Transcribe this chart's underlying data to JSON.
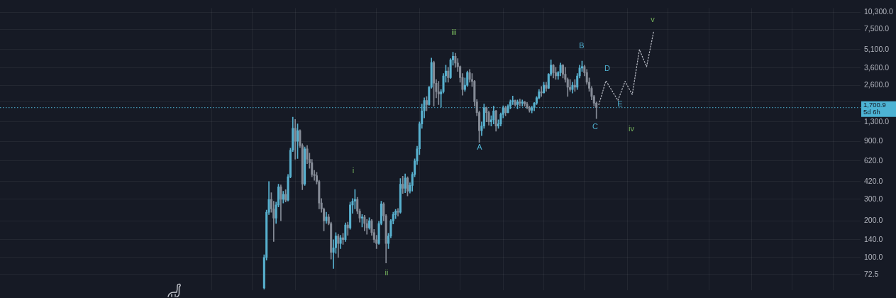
{
  "chart_data": {
    "type": "candlestick",
    "categories": [
      null,
      null,
      null,
      null,
      null,
      null,
      null,
      null,
      null,
      null,
      null,
      null,
      null,
      null,
      null,
      null,
      null,
      null,
      null,
      null,
      null,
      null,
      null,
      null,
      null,
      null,
      null,
      null,
      null,
      null,
      null,
      null,
      null,
      null,
      null,
      null,
      null,
      null,
      null,
      null,
      null,
      null,
      null,
      null,
      null,
      null,
      null,
      null,
      null,
      null,
      null,
      null,
      null,
      null,
      null,
      null,
      null,
      null,
      null,
      null,
      null,
      null,
      null,
      null,
      null,
      null,
      null,
      null,
      null,
      null,
      null,
      null,
      null,
      null,
      null,
      null,
      null,
      null,
      null,
      null,
      null,
      null,
      null,
      null,
      null,
      null,
      null,
      null,
      null,
      null,
      null,
      null,
      null,
      null,
      null,
      null,
      null,
      null,
      null,
      null,
      null,
      null,
      null,
      null,
      null,
      null,
      null,
      null,
      null,
      null,
      null,
      null,
      null,
      null,
      null,
      null,
      null,
      null,
      null,
      null,
      null,
      null,
      null,
      null,
      null,
      null,
      null,
      null,
      null,
      null,
      null,
      null,
      null,
      null,
      null,
      null,
      null,
      null,
      null,
      null,
      null,
      null,
      null,
      null,
      null,
      null,
      null,
      null,
      null,
      null,
      null,
      null,
      null,
      null,
      null,
      null,
      null,
      null,
      null,
      null,
      null,
      null,
      null,
      null,
      null,
      null,
      null,
      null,
      null,
      null,
      null,
      null,
      null,
      null,
      null,
      null,
      null,
      null,
      null,
      null,
      null,
      null,
      null,
      null,
      null,
      null,
      null,
      null,
      null,
      null,
      null,
      null,
      null,
      null,
      null,
      null,
      null,
      null,
      null,
      null,
      null,
      null,
      null,
      null,
      null,
      null,
      null,
      null,
      null,
      null,
      null,
      null,
      null,
      null,
      null,
      null,
      null,
      null,
      null,
      null,
      null,
      null,
      null,
      null,
      null,
      null,
      null,
      null,
      null,
      null,
      null,
      null,
      null,
      null,
      null,
      null,
      null,
      null,
      null,
      null,
      null,
      null,
      null,
      null,
      null,
      null,
      null,
      null,
      null,
      null,
      null,
      null,
      null,
      null,
      null,
      null,
      null,
      null,
      null,
      null,
      null,
      null,
      null,
      null,
      null,
      null,
      null,
      null,
      null,
      null,
      null,
      null,
      null,
      null,
      null,
      null,
      null,
      null,
      null,
      null,
      null,
      null,
      null,
      null,
      null,
      null,
      null,
      null,
      null,
      null,
      null,
      null,
      null,
      null,
      null,
      null,
      null,
      null,
      null,
      null,
      null,
      null,
      null,
      null,
      null,
      null,
      null,
      null,
      null,
      null,
      null,
      null,
      null,
      null,
      null,
      null,
      null,
      null,
      null,
      null,
      null,
      null,
      null,
      null,
      null,
      null,
      null,
      null,
      null,
      null,
      null,
      null,
      null,
      null,
      null,
      null,
      null,
      null,
      null,
      null,
      null,
      null,
      null,
      null,
      null,
      null,
      null,
      null,
      null,
      null,
      null,
      null,
      null,
      null,
      null,
      null,
      null,
      null,
      null,
      null
    ],
    "ohlc": [
      null,
      null,
      null,
      null,
      null,
      null,
      null,
      null,
      null,
      null,
      null,
      null,
      null,
      null,
      null,
      null,
      null,
      null,
      null,
      null,
      null,
      null,
      null,
      null,
      null,
      null,
      null,
      null,
      null,
      null,
      null,
      null,
      null,
      null,
      null,
      null,
      null,
      null,
      null,
      null,
      null,
      null,
      null,
      null,
      null,
      null,
      null,
      null,
      null,
      null,
      null,
      null,
      null,
      null,
      null,
      null,
      null,
      null,
      null,
      null,
      null,
      null,
      null,
      null,
      null,
      null,
      null,
      null,
      null,
      null,
      null,
      null,
      null,
      null,
      null,
      null,
      null,
      null,
      null,
      null,
      null,
      null,
      null,
      null,
      null,
      null,
      null,
      null,
      null,
      null,
      null,
      null,
      null,
      null,
      null,
      null,
      null,
      null,
      null,
      null,
      null,
      null,
      null,
      null,
      null,
      null,
      null,
      null,
      null,
      null,
      [
        56,
        105,
        55,
        100
      ],
      [
        100,
        245,
        95,
        235
      ],
      [
        235,
        420,
        225,
        300
      ],
      [
        300,
        340,
        235,
        250
      ],
      [
        250,
        290,
        135,
        210
      ],
      [
        210,
        285,
        190,
        270
      ],
      [
        270,
        400,
        260,
        380
      ],
      [
        380,
        395,
        200,
        300
      ],
      [
        300,
        350,
        280,
        330
      ],
      [
        330,
        360,
        285,
        295
      ],
      [
        295,
        480,
        290,
        460
      ],
      [
        460,
        790,
        450,
        760
      ],
      [
        760,
        1420,
        740,
        1150
      ],
      [
        1150,
        1360,
        640,
        900
      ],
      [
        900,
        1250,
        650,
        1100
      ],
      [
        1100,
        1120,
        800,
        830
      ],
      [
        830,
        860,
        360,
        400
      ],
      [
        400,
        810,
        390,
        780
      ],
      [
        780,
        830,
        590,
        640
      ],
      [
        640,
        720,
        540,
        600
      ],
      [
        600,
        640,
        460,
        480
      ],
      [
        480,
        520,
        430,
        470
      ],
      [
        470,
        500,
        400,
        420
      ],
      [
        420,
        430,
        250,
        280
      ],
      [
        280,
        305,
        235,
        250
      ],
      [
        250,
        255,
        165,
        200
      ],
      [
        200,
        235,
        190,
        215
      ],
      [
        215,
        225,
        185,
        190
      ],
      [
        190,
        195,
        97,
        110
      ],
      [
        110,
        140,
        81,
        120
      ],
      [
        120,
        160,
        108,
        150
      ],
      [
        150,
        155,
        100,
        130
      ],
      [
        130,
        152,
        118,
        145
      ],
      [
        145,
        158,
        128,
        140
      ],
      [
        140,
        192,
        135,
        185
      ],
      [
        185,
        195,
        152,
        175
      ],
      [
        175,
        285,
        170,
        270
      ],
      [
        270,
        305,
        230,
        290
      ],
      [
        290,
        362,
        250,
        300
      ],
      [
        300,
        312,
        228,
        240
      ],
      [
        240,
        250,
        195,
        210
      ],
      [
        210,
        225,
        178,
        215
      ],
      [
        215,
        222,
        165,
        190
      ],
      [
        190,
        205,
        155,
        175
      ],
      [
        175,
        212,
        170,
        200
      ],
      [
        200,
        205,
        152,
        160
      ],
      [
        160,
        170,
        133,
        140
      ],
      [
        140,
        152,
        118,
        130
      ],
      [
        130,
        198,
        128,
        190
      ],
      [
        190,
        290,
        185,
        275
      ],
      [
        275,
        282,
        200,
        220
      ],
      [
        220,
        225,
        90,
        130
      ],
      [
        130,
        158,
        118,
        150
      ],
      [
        150,
        205,
        145,
        200
      ],
      [
        200,
        235,
        188,
        225
      ],
      [
        225,
        248,
        208,
        240
      ],
      [
        240,
        252,
        218,
        235
      ],
      [
        235,
        445,
        230,
        400
      ],
      [
        400,
        465,
        335,
        370
      ],
      [
        370,
        485,
        340,
        450
      ],
      [
        450,
        460,
        320,
        350
      ],
      [
        350,
        410,
        338,
        390
      ],
      [
        390,
        500,
        350,
        480
      ],
      [
        480,
        645,
        460,
        620
      ],
      [
        620,
        820,
        580,
        780
      ],
      [
        780,
        1300,
        700,
        1250
      ],
      [
        1250,
        1820,
        1150,
        1600
      ],
      [
        1600,
        2050,
        1400,
        1950
      ],
      [
        1950,
        2100,
        1600,
        1800
      ],
      [
        1800,
        2550,
        1780,
        2500
      ],
      [
        2500,
        4350,
        2450,
        4000
      ],
      [
        4000,
        4100,
        1750,
        2700
      ],
      [
        2700,
        2900,
        2050,
        2300
      ],
      [
        2300,
        2800,
        1800,
        2200
      ],
      [
        2200,
        2400,
        1720,
        2300
      ],
      [
        2300,
        3250,
        2240,
        3100
      ],
      [
        3100,
        3800,
        2750,
        3400
      ],
      [
        3400,
        3650,
        2750,
        3000
      ],
      [
        3000,
        4300,
        2950,
        4200
      ],
      [
        4200,
        4850,
        3800,
        4500
      ],
      [
        4500,
        4750,
        3650,
        3950
      ],
      [
        3950,
        4300,
        3380,
        3700
      ],
      [
        3700,
        3750,
        2750,
        3000
      ],
      [
        3000,
        3250,
        2150,
        2400
      ],
      [
        2400,
        2980,
        2320,
        2600
      ],
      [
        2600,
        3400,
        2540,
        3300
      ],
      [
        3300,
        3500,
        2750,
        2900
      ],
      [
        2900,
        3250,
        2540,
        2800
      ],
      [
        2800,
        2850,
        1750,
        1900
      ],
      [
        1900,
        1980,
        1460,
        1550
      ],
      [
        1550,
        1600,
        880,
        1100
      ],
      [
        1100,
        1300,
        1000,
        1200
      ],
      [
        1200,
        1820,
        1150,
        1700
      ],
      [
        1700,
        1720,
        1300,
        1550
      ],
      [
        1550,
        1600,
        1220,
        1300
      ],
      [
        1300,
        1460,
        1200,
        1350
      ],
      [
        1350,
        1750,
        1250,
        1600
      ],
      [
        1600,
        1620,
        1090,
        1200
      ],
      [
        1200,
        1350,
        1150,
        1250
      ],
      [
        1250,
        1540,
        1200,
        1500
      ],
      [
        1500,
        1760,
        1400,
        1700
      ],
      [
        1700,
        1750,
        1460,
        1550
      ],
      [
        1550,
        1800,
        1540,
        1750
      ],
      [
        1750,
        1970,
        1660,
        1900
      ],
      [
        1900,
        2120,
        1800,
        1950
      ],
      [
        1950,
        1970,
        1750,
        1800
      ],
      [
        1800,
        1970,
        1660,
        1900
      ],
      [
        1900,
        2000,
        1750,
        1850
      ],
      [
        1850,
        1970,
        1750,
        1900
      ],
      [
        1900,
        1920,
        1750,
        1820
      ],
      [
        1820,
        1880,
        1660,
        1700
      ],
      [
        1700,
        1750,
        1560,
        1620
      ],
      [
        1620,
        1750,
        1540,
        1700
      ],
      [
        1700,
        1880,
        1600,
        1850
      ],
      [
        1850,
        2100,
        1800,
        2050
      ],
      [
        2050,
        2400,
        2000,
        2300
      ],
      [
        2300,
        2540,
        2100,
        2250
      ],
      [
        2250,
        2750,
        2240,
        2600
      ],
      [
        2600,
        2750,
        2320,
        2450
      ],
      [
        2450,
        3250,
        2440,
        3200
      ],
      [
        3200,
        4200,
        3100,
        3800
      ],
      [
        3800,
        3850,
        2980,
        3300
      ],
      [
        3300,
        3650,
        2900,
        3100
      ],
      [
        3100,
        3380,
        2900,
        3300
      ],
      [
        3300,
        3960,
        3100,
        3800
      ],
      [
        3800,
        3850,
        2980,
        3200
      ],
      [
        3200,
        3650,
        2750,
        2900
      ],
      [
        2900,
        2980,
        2100,
        2500
      ],
      [
        2500,
        2900,
        2320,
        2400
      ],
      [
        2400,
        2750,
        2240,
        2600
      ],
      [
        2600,
        2900,
        2320,
        2500
      ],
      [
        2500,
        3250,
        2400,
        3100
      ],
      [
        3100,
        3800,
        2980,
        3600
      ],
      [
        3600,
        4100,
        3380,
        3700
      ],
      [
        3700,
        3800,
        3100,
        3300
      ],
      [
        3300,
        3500,
        2640,
        2750
      ],
      [
        2750,
        2980,
        2320,
        2450
      ],
      [
        2450,
        2540,
        1970,
        2100
      ],
      [
        2100,
        2150,
        1750,
        1850
      ],
      [
        1850,
        1900,
        1380,
        1700.9
      ],
      null,
      null,
      null,
      null,
      null,
      null,
      null,
      null,
      null,
      null,
      null,
      null,
      null,
      null,
      null,
      null,
      null,
      null,
      null,
      null,
      null,
      null,
      null,
      null,
      null,
      null,
      null,
      null,
      null,
      null,
      null,
      null,
      null,
      null,
      null,
      null,
      null,
      null,
      null,
      null,
      null,
      null,
      null,
      null,
      null,
      null,
      null,
      null,
      null,
      null,
      null,
      null,
      null,
      null,
      null,
      null,
      null,
      null,
      null,
      null,
      null,
      null,
      null,
      null,
      null,
      null,
      null,
      null,
      null,
      null,
      null,
      null,
      null,
      null,
      null,
      null,
      null,
      null,
      null,
      null,
      null,
      null,
      null,
      null,
      null,
      null,
      null,
      null,
      null,
      null,
      null,
      null,
      null,
      null,
      null,
      null,
      null,
      null,
      null,
      null,
      null,
      null,
      null,
      null,
      null,
      null,
      null,
      null,
      null,
      null
    ],
    "colors": [
      null,
      null,
      null,
      null,
      null,
      null,
      null,
      null,
      null,
      null,
      null,
      null,
      null,
      null,
      null,
      null,
      null,
      null,
      null,
      null,
      null,
      null,
      null,
      null,
      null,
      null,
      null,
      null,
      null,
      null,
      null,
      null,
      null,
      null,
      null,
      null,
      null,
      null,
      null,
      null,
      null,
      null,
      null,
      null,
      null,
      null,
      null,
      null,
      null,
      null,
      null,
      null,
      null,
      null,
      null,
      null,
      null,
      null,
      null,
      null,
      null,
      null,
      null,
      null,
      null,
      null,
      null,
      null,
      null,
      null,
      null,
      null,
      null,
      null,
      null,
      null,
      null,
      null,
      null,
      null,
      null,
      null,
      null,
      null,
      null,
      null,
      null,
      null,
      null,
      null,
      null,
      null,
      null,
      null,
      null,
      null,
      null,
      null,
      null,
      null,
      null,
      null,
      null,
      null,
      null,
      null,
      null,
      null,
      null,
      null,
      "#58b1cf",
      "#58b1cf",
      "#58b1cf",
      "#858b96",
      "#858b96",
      "#58b1cf",
      "#58b1cf",
      "#858b96",
      "#58b1cf",
      "#858b96",
      "#58b1cf",
      "#58b1cf",
      "#58b1cf",
      "#858b96",
      "#58b1cf",
      "#858b96",
      "#858b96",
      "#58b1cf",
      "#858b96",
      "#858b96",
      "#858b96",
      "#858b96",
      "#858b96",
      "#858b96",
      "#858b96",
      "#858b96",
      "#58b1cf",
      "#858b96",
      "#858b96",
      "#58b1cf",
      "#58b1cf",
      "#858b96",
      "#58b1cf",
      "#858b96",
      "#58b1cf",
      "#858b96",
      "#58b1cf",
      "#58b1cf",
      "#58b1cf",
      "#858b96",
      "#858b96",
      "#58b1cf",
      "#858b96",
      "#858b96",
      "#58b1cf",
      "#858b96",
      "#858b96",
      "#858b96",
      "#58b1cf",
      "#58b1cf",
      "#858b96",
      "#858b96",
      "#58b1cf",
      "#58b1cf",
      "#58b1cf",
      "#58b1cf",
      "#858b96",
      "#58b1cf",
      "#858b96",
      "#58b1cf",
      "#858b96",
      "#58b1cf",
      "#58b1cf",
      "#58b1cf",
      "#58b1cf",
      "#58b1cf",
      "#58b1cf",
      "#58b1cf",
      "#858b96",
      "#58b1cf",
      "#58b1cf",
      "#858b96",
      "#858b96",
      "#858b96",
      "#58b1cf",
      "#58b1cf",
      "#58b1cf",
      "#858b96",
      "#58b1cf",
      "#58b1cf",
      "#858b96",
      "#858b96",
      "#858b96",
      "#858b96",
      "#58b1cf",
      "#58b1cf",
      "#858b96",
      "#858b96",
      "#858b96",
      "#858b96",
      "#858b96",
      "#58b1cf",
      "#58b1cf",
      "#858b96",
      "#858b96",
      "#58b1cf",
      "#58b1cf",
      "#858b96",
      "#58b1cf",
      "#58b1cf",
      "#58b1cf",
      "#858b96",
      "#58b1cf",
      "#58b1cf",
      "#58b1cf",
      "#858b96",
      "#58b1cf",
      "#858b96",
      "#58b1cf",
      "#858b96",
      "#858b96",
      "#858b96",
      "#58b1cf",
      "#58b1cf",
      "#58b1cf",
      "#58b1cf",
      "#858b96",
      "#58b1cf",
      "#858b96",
      "#58b1cf",
      "#58b1cf",
      "#858b96",
      "#858b96",
      "#58b1cf",
      "#58b1cf",
      "#858b96",
      "#858b96",
      "#858b96",
      "#858b96",
      "#58b1cf",
      "#858b96",
      "#58b1cf",
      "#58b1cf",
      "#58b1cf",
      "#858b96",
      "#858b96",
      "#858b96",
      "#858b96",
      "#858b96",
      "#858b96",
      null,
      null,
      null,
      null,
      null,
      null,
      null,
      null,
      null,
      null,
      null,
      null,
      null,
      null,
      null,
      null,
      null,
      null,
      null,
      null,
      null,
      null,
      null,
      null,
      null,
      null,
      null,
      null,
      null,
      null,
      null,
      null,
      null,
      null,
      null,
      null,
      null,
      null,
      null,
      null,
      null,
      null,
      null,
      null,
      null,
      null,
      null,
      null,
      null,
      null,
      null,
      null,
      null,
      null,
      null,
      null,
      null,
      null,
      null,
      null,
      null,
      null,
      null,
      null,
      null,
      null,
      null,
      null,
      null,
      null,
      null,
      null,
      null,
      null,
      null,
      null,
      null,
      null,
      null,
      null,
      null,
      null,
      null,
      null,
      null,
      null,
      null,
      null,
      null,
      null,
      null,
      null,
      null,
      null,
      null,
      null,
      null,
      null,
      null,
      null,
      null,
      null,
      null,
      null,
      null,
      null,
      null,
      null,
      null,
      null
    ],
    "series": [
      {
        "type": "line",
        "color": "#b2b5be",
        "line_style": "dotted",
        "marker": "none",
        "values": [
          null,
          null,
          null,
          null,
          null,
          null,
          null,
          null,
          null,
          null,
          null,
          null,
          null,
          null,
          null,
          null,
          null,
          null,
          null,
          null,
          null,
          null,
          null,
          null,
          null,
          null,
          null,
          null,
          null,
          null,
          null,
          null,
          null,
          null,
          null,
          null,
          null,
          null,
          null,
          null,
          null,
          null,
          null,
          null,
          null,
          null,
          null,
          null,
          null,
          null,
          null,
          null,
          null,
          null,
          null,
          null,
          null,
          null,
          null,
          null,
          null,
          null,
          null,
          null,
          null,
          null,
          null,
          null,
          null,
          null,
          null,
          null,
          null,
          null,
          null,
          null,
          null,
          null,
          null,
          null,
          null,
          null,
          null,
          null,
          null,
          null,
          null,
          null,
          null,
          null,
          null,
          null,
          null,
          null,
          null,
          null,
          null,
          null,
          null,
          null,
          null,
          null,
          null,
          null,
          null,
          null,
          null,
          null,
          null,
          null,
          null,
          null,
          null,
          null,
          null,
          null,
          null,
          null,
          null,
          null,
          null,
          null,
          null,
          null,
          null,
          null,
          null,
          null,
          null,
          null,
          null,
          null,
          null,
          null,
          null,
          null,
          null,
          null,
          null,
          null,
          null,
          null,
          null,
          null,
          null,
          null,
          null,
          null,
          null,
          null,
          null,
          null,
          null,
          null,
          null,
          null,
          null,
          null,
          null,
          null,
          null,
          null,
          null,
          null,
          null,
          null,
          null,
          null,
          null,
          null,
          null,
          null,
          null,
          null,
          null,
          null,
          null,
          null,
          null,
          null,
          null,
          null,
          null,
          null,
          null,
          null,
          null,
          null,
          null,
          null,
          null,
          null,
          null,
          null,
          null,
          null,
          null,
          null,
          null,
          null,
          null,
          null,
          null,
          null,
          null,
          null,
          null,
          null,
          null,
          null,
          null,
          null,
          null,
          null,
          null,
          null,
          null,
          null,
          null,
          null,
          null,
          null,
          null,
          null,
          null,
          null,
          null,
          null,
          null,
          null,
          null,
          null,
          null,
          null,
          null,
          null,
          null,
          null,
          null,
          null,
          null,
          null,
          null,
          null,
          null,
          null,
          null,
          null,
          null,
          null,
          1800,
          null,
          null,
          2830,
          null,
          null,
          null,
          null,
          1950,
          null,
          null,
          2800,
          null,
          null,
          2180,
          null,
          null,
          5100,
          null,
          null,
          3690,
          null,
          null,
          7250,
          null,
          null,
          null,
          null,
          null,
          null,
          null,
          null,
          null,
          null,
          null,
          null,
          null,
          null,
          null,
          null,
          null,
          null,
          null,
          null,
          null,
          null,
          null,
          null,
          null,
          null,
          null,
          null,
          null,
          null,
          null,
          null,
          null,
          null,
          null,
          null,
          null,
          null,
          null,
          null,
          null,
          null,
          null,
          null,
          null,
          null,
          null,
          null,
          null,
          null,
          null,
          null,
          null,
          null,
          null,
          null,
          null,
          null,
          null,
          null,
          null,
          null,
          null,
          null,
          null,
          null,
          null,
          null,
          null,
          null,
          null,
          null,
          null,
          null,
          null,
          null,
          null,
          null,
          null,
          null,
          null,
          null,
          null,
          null,
          null,
          null
        ]
      }
    ],
    "ylim": [
      54,
      11200
    ],
    "yticks": [
      72.5,
      {
        "value": 100,
        "label": "100.0"
      },
      {
        "value": 140,
        "label": "140.0"
      },
      {
        "value": 200,
        "label": "200.0"
      },
      {
        "value": 300,
        "label": "300.0"
      },
      {
        "value": 420,
        "label": "420.0"
      },
      {
        "value": 620,
        "label": "620.0"
      },
      {
        "value": 900,
        "label": "900.0"
      },
      {
        "value": 1300,
        "label": "1,300.0"
      },
      {
        "value": 1900,
        "label": null
      },
      {
        "value": 2600,
        "label": "2,600.0"
      },
      {
        "value": 3600,
        "label": "3,600.0"
      },
      {
        "value": 5100,
        "label": "5,100.0"
      },
      {
        "value": 7500,
        "label": "7,500.0"
      },
      {
        "value": 10300,
        "label": "10,300.0"
      }
    ],
    "log": true,
    "grid": true,
    "tick_labels": "y",
    "ref_lines": [
      {
        "axis": "y",
        "value": 1700.9,
        "label": "1,700.9",
        "color": "#4db3d4",
        "line_style": "dotted"
      }
    ],
    "annotations": [
      "i",
      "ii",
      "iii",
      "iv",
      "v",
      "A",
      "B",
      "C",
      "D",
      "E",
      "5d 6h"
    ]
  }
}
